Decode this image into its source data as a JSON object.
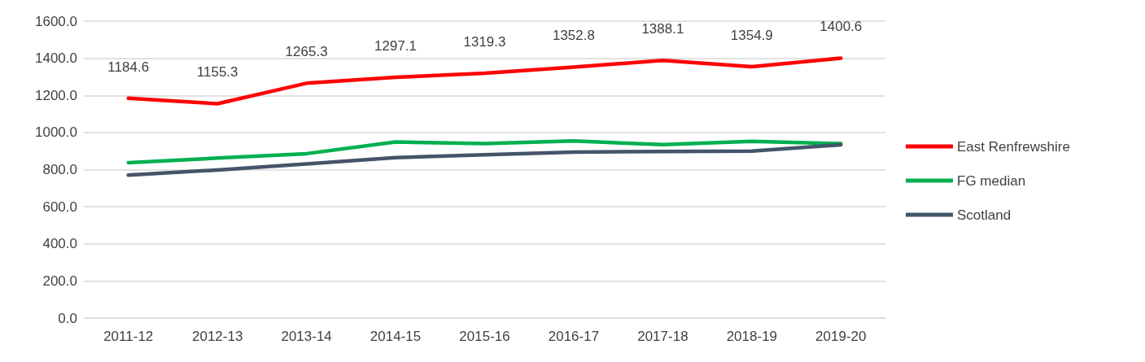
{
  "chart_data": {
    "type": "line",
    "categories": [
      "2011-12",
      "2012-13",
      "2013-14",
      "2014-15",
      "2015-16",
      "2016-17",
      "2017-18",
      "2018-19",
      "2019-20"
    ],
    "series": [
      {
        "name": "East Renfrewshire",
        "color": "#ff0000",
        "values": [
          1184.6,
          1155.3,
          1265.3,
          1297.1,
          1319.3,
          1352.8,
          1388.1,
          1354.9,
          1400.6
        ],
        "value_labels": [
          "1184.6",
          "1155.3",
          "1265.3",
          "1297.1",
          "1319.3",
          "1352.8",
          "1388.1",
          "1354.9",
          "1400.6"
        ]
      },
      {
        "name": "FG median",
        "color": "#00b050",
        "values": [
          837,
          862,
          886,
          949,
          940,
          954,
          935,
          952,
          940
        ]
      },
      {
        "name": "Scotland",
        "color": "#44546a",
        "values": [
          770,
          798,
          831,
          865,
          880,
          894,
          898,
          900,
          934
        ]
      }
    ],
    "ylim": [
      0,
      1600
    ],
    "yticks": [
      {
        "value": 0,
        "label": "0.0"
      },
      {
        "value": 200,
        "label": "200.0"
      },
      {
        "value": 400,
        "label": "400.0"
      },
      {
        "value": 600,
        "label": "600.0"
      },
      {
        "value": 800,
        "label": "800.0"
      },
      {
        "value": 1000,
        "label": "1000.0"
      },
      {
        "value": 1200,
        "label": "1200.0"
      },
      {
        "value": 1400,
        "label": "1400.0"
      },
      {
        "value": 1600,
        "label": "1600.0"
      }
    ],
    "grid": "y",
    "legend": "right",
    "marker": "none",
    "line_style": "solid"
  }
}
